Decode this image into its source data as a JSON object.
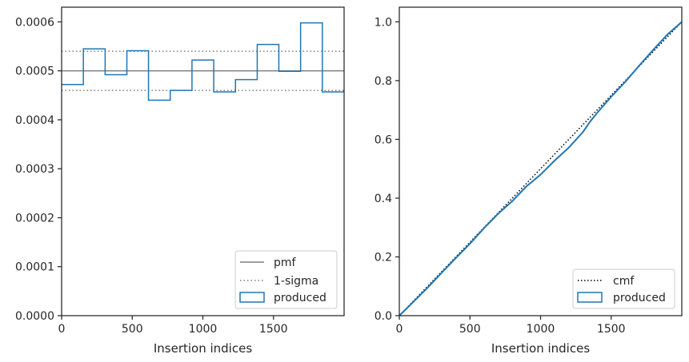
{
  "chart_data": [
    {
      "type": "histogram-step",
      "xlabel": "Insertion indices",
      "xlim": [
        0,
        2000
      ],
      "ylim": [
        0,
        0.00063
      ],
      "x_ticks": [
        0,
        500,
        1000,
        1500
      ],
      "x_tick_labels": [
        "0",
        "500",
        "1000",
        "1500"
      ],
      "y_ticks": [
        0,
        0.0001,
        0.0002,
        0.0003,
        0.0004,
        0.0005,
        0.0006
      ],
      "y_tick_labels": [
        "0.0000",
        "0.0001",
        "0.0002",
        "0.0003",
        "0.0004",
        "0.0005",
        "0.0006"
      ],
      "bin_edges": [
        0,
        154,
        308,
        462,
        615,
        769,
        923,
        1077,
        1231,
        1385,
        1538,
        1692,
        1846,
        2000
      ],
      "values": [
        0.000472,
        0.000545,
        0.000492,
        0.000541,
        0.00044,
        0.00046,
        0.000522,
        0.000457,
        0.000482,
        0.000554,
        0.000499,
        0.000598,
        0.000457
      ],
      "reference_lines": [
        {
          "name": "pmf",
          "y": 0.0005,
          "style": "solid",
          "color": "#7f7f7f"
        },
        {
          "name": "1-sigma",
          "y": 0.00054,
          "style": "dotted",
          "color": "#7f7f7f"
        },
        {
          "name": "1-sigma",
          "y": 0.00046,
          "style": "dotted",
          "color": "#7f7f7f"
        }
      ],
      "series_color": "#1f77b4",
      "legend": {
        "placement": "lower-right",
        "entries": [
          "pmf",
          "1-sigma",
          "produced"
        ]
      }
    },
    {
      "type": "line",
      "xlabel": "Insertion indices",
      "xlim": [
        0,
        2000
      ],
      "ylim": [
        0,
        1.05
      ],
      "x_ticks": [
        0,
        500,
        1000,
        1500
      ],
      "x_tick_labels": [
        "0",
        "500",
        "1000",
        "1500"
      ],
      "y_ticks": [
        0,
        0.2,
        0.4,
        0.6,
        0.8,
        1.0
      ],
      "y_tick_labels": [
        "0.0",
        "0.2",
        "0.4",
        "0.6",
        "0.8",
        "1.0"
      ],
      "series": [
        {
          "name": "cmf",
          "style": "dotted",
          "color": "#000000",
          "x": [
            0,
            2000
          ],
          "y": [
            0,
            1.0
          ]
        },
        {
          "name": "produced",
          "style": "solid",
          "color": "#1f77b4",
          "x": [
            0,
            100,
            200,
            300,
            400,
            500,
            600,
            700,
            800,
            900,
            1000,
            1100,
            1200,
            1300,
            1350,
            1400,
            1500,
            1600,
            1700,
            1800,
            1900,
            2000
          ],
          "y": [
            0,
            0.047,
            0.095,
            0.146,
            0.196,
            0.245,
            0.298,
            0.347,
            0.39,
            0.44,
            0.48,
            0.528,
            0.572,
            0.625,
            0.66,
            0.69,
            0.745,
            0.796,
            0.852,
            0.906,
            0.958,
            1.0
          ]
        }
      ],
      "legend": {
        "placement": "lower-right",
        "entries": [
          "cmf",
          "produced"
        ]
      }
    }
  ]
}
